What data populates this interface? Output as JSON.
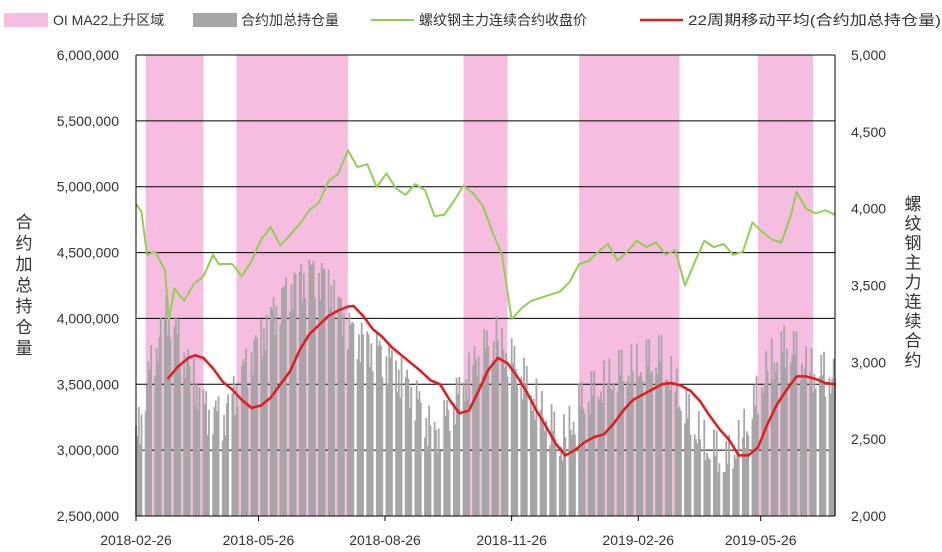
{
  "chart_data": {
    "type": "bar",
    "x_axis": {
      "range": [
        "2018-02-26",
        "2019-07-19"
      ],
      "tick_labels": [
        "2018-02-26",
        "2018-05-26",
        "2018-08-26",
        "2018-11-26",
        "2019-02-26",
        "2019-05-26"
      ]
    },
    "y_left": {
      "label": "合约加总持仓量",
      "range": [
        2500000,
        6000000
      ],
      "ticks": [
        2500000,
        3000000,
        3500000,
        4000000,
        4500000,
        5000000,
        5500000,
        6000000
      ],
      "tick_labels": [
        "2,500,000",
        "3,000,000",
        "3,500,000",
        "4,000,000",
        "4,500,000",
        "5,000,000",
        "5,500,000",
        "6,000,000"
      ]
    },
    "y_right": {
      "label": "螺纹钢主力连续合约",
      "range": [
        2000,
        5000
      ],
      "ticks": [
        2000,
        2500,
        3000,
        3500,
        4000,
        4500,
        5000
      ],
      "tick_labels": [
        "2,000",
        "2,500",
        "3,000",
        "3,500",
        "4,000",
        "4,500",
        "5,000"
      ]
    },
    "grid": "horizontal",
    "legend_position": "top",
    "colors": {
      "band": "#f7bde0",
      "bars": "#a6a6a6",
      "price": "#8fd14f",
      "ma": "#e41a1c"
    },
    "series": [
      {
        "name": "OI MA22上升区域",
        "kind": "band",
        "ranges": [
          [
            "2018-03-05",
            "2018-04-16"
          ],
          [
            "2018-05-10",
            "2018-07-30"
          ],
          [
            "2018-10-22",
            "2018-11-23"
          ],
          [
            "2019-01-14",
            "2019-03-28"
          ],
          [
            "2019-05-24",
            "2019-07-03"
          ]
        ]
      },
      {
        "name": "合约加总持仓量",
        "kind": "bar",
        "axis": "left",
        "points": [
          [
            "2018-02-26",
            3050000
          ],
          [
            "2018-03-08",
            3600000
          ],
          [
            "2018-03-21",
            4050000
          ],
          [
            "2018-04-05",
            3650000
          ],
          [
            "2018-04-18",
            3300000
          ],
          [
            "2018-05-01",
            3250000
          ],
          [
            "2018-05-15",
            3600000
          ],
          [
            "2018-06-01",
            3950000
          ],
          [
            "2018-06-15",
            4200000
          ],
          [
            "2018-07-01",
            4350000
          ],
          [
            "2018-07-15",
            4300000
          ],
          [
            "2018-08-01",
            3900000
          ],
          [
            "2018-08-15",
            3800000
          ],
          [
            "2018-09-01",
            3650000
          ],
          [
            "2018-09-15",
            3450000
          ],
          [
            "2018-10-01",
            3100000
          ],
          [
            "2018-10-15",
            3350000
          ],
          [
            "2018-11-01",
            3700000
          ],
          [
            "2018-11-15",
            3850000
          ],
          [
            "2018-12-01",
            3600000
          ],
          [
            "2018-12-15",
            3350000
          ],
          [
            "2019-01-01",
            3050000
          ],
          [
            "2019-01-15",
            3350000
          ],
          [
            "2019-02-01",
            3500000
          ],
          [
            "2019-02-15",
            3600000
          ],
          [
            "2019-03-01",
            3650000
          ],
          [
            "2019-03-15",
            3700000
          ],
          [
            "2019-04-01",
            3300000
          ],
          [
            "2019-04-15",
            3050000
          ],
          [
            "2019-05-01",
            2900000
          ],
          [
            "2019-05-15",
            3150000
          ],
          [
            "2019-06-01",
            3650000
          ],
          [
            "2019-06-15",
            3800000
          ],
          [
            "2019-07-01",
            3600000
          ],
          [
            "2019-07-19",
            3550000
          ]
        ]
      },
      {
        "name": "螺纹钢主力连续合约收盘价",
        "kind": "line",
        "axis": "right",
        "points": [
          [
            "2018-02-26",
            4030
          ],
          [
            "2018-03-02",
            3980
          ],
          [
            "2018-03-06",
            3700
          ],
          [
            "2018-03-12",
            3720
          ],
          [
            "2018-03-19",
            3600
          ],
          [
            "2018-03-22",
            3280
          ],
          [
            "2018-03-26",
            3480
          ],
          [
            "2018-04-02",
            3400
          ],
          [
            "2018-04-09",
            3510
          ],
          [
            "2018-04-16",
            3560
          ],
          [
            "2018-04-23",
            3700
          ],
          [
            "2018-04-27",
            3640
          ],
          [
            "2018-05-07",
            3640
          ],
          [
            "2018-05-14",
            3560
          ],
          [
            "2018-05-21",
            3660
          ],
          [
            "2018-05-28",
            3800
          ],
          [
            "2018-06-04",
            3880
          ],
          [
            "2018-06-11",
            3760
          ],
          [
            "2018-06-18",
            3830
          ],
          [
            "2018-06-25",
            3900
          ],
          [
            "2018-07-02",
            3990
          ],
          [
            "2018-07-09",
            4040
          ],
          [
            "2018-07-16",
            4180
          ],
          [
            "2018-07-23",
            4230
          ],
          [
            "2018-07-30",
            4380
          ],
          [
            "2018-08-06",
            4270
          ],
          [
            "2018-08-13",
            4290
          ],
          [
            "2018-08-20",
            4140
          ],
          [
            "2018-08-27",
            4230
          ],
          [
            "2018-09-03",
            4130
          ],
          [
            "2018-09-10",
            4090
          ],
          [
            "2018-09-17",
            4160
          ],
          [
            "2018-09-24",
            4120
          ],
          [
            "2018-10-01",
            3950
          ],
          [
            "2018-10-08",
            3960
          ],
          [
            "2018-10-15",
            4050
          ],
          [
            "2018-10-22",
            4150
          ],
          [
            "2018-10-29",
            4100
          ],
          [
            "2018-11-05",
            4020
          ],
          [
            "2018-11-12",
            3850
          ],
          [
            "2018-11-19",
            3700
          ],
          [
            "2018-11-26",
            3280
          ],
          [
            "2018-12-03",
            3350
          ],
          [
            "2018-12-10",
            3400
          ],
          [
            "2018-12-17",
            3420
          ],
          [
            "2018-12-24",
            3440
          ],
          [
            "2018-12-31",
            3460
          ],
          [
            "2019-01-07",
            3520
          ],
          [
            "2019-01-14",
            3640
          ],
          [
            "2019-01-21",
            3660
          ],
          [
            "2019-01-28",
            3720
          ],
          [
            "2019-02-04",
            3770
          ],
          [
            "2019-02-11",
            3660
          ],
          [
            "2019-02-18",
            3720
          ],
          [
            "2019-02-25",
            3790
          ],
          [
            "2019-03-04",
            3750
          ],
          [
            "2019-03-11",
            3780
          ],
          [
            "2019-03-18",
            3700
          ],
          [
            "2019-03-25",
            3730
          ],
          [
            "2019-04-01",
            3500
          ],
          [
            "2019-04-08",
            3650
          ],
          [
            "2019-04-15",
            3790
          ],
          [
            "2019-04-22",
            3750
          ],
          [
            "2019-04-29",
            3770
          ],
          [
            "2019-05-06",
            3700
          ],
          [
            "2019-05-13",
            3720
          ],
          [
            "2019-05-20",
            3910
          ],
          [
            "2019-05-27",
            3850
          ],
          [
            "2019-06-03",
            3800
          ],
          [
            "2019-06-10",
            3780
          ],
          [
            "2019-06-17",
            3960
          ],
          [
            "2019-06-21",
            4110
          ],
          [
            "2019-06-28",
            4000
          ],
          [
            "2019-07-05",
            3970
          ],
          [
            "2019-07-12",
            3990
          ],
          [
            "2019-07-19",
            3960
          ]
        ]
      },
      {
        "name": "22周期移动平均(合约加总持仓量)",
        "kind": "line",
        "axis": "left",
        "points": [
          [
            "2018-03-21",
            3540000
          ],
          [
            "2018-03-28",
            3630000
          ],
          [
            "2018-04-05",
            3700000
          ],
          [
            "2018-04-10",
            3720000
          ],
          [
            "2018-04-16",
            3700000
          ],
          [
            "2018-04-23",
            3620000
          ],
          [
            "2018-04-30",
            3520000
          ],
          [
            "2018-05-07",
            3460000
          ],
          [
            "2018-05-14",
            3380000
          ],
          [
            "2018-05-21",
            3320000
          ],
          [
            "2018-05-28",
            3340000
          ],
          [
            "2018-06-04",
            3400000
          ],
          [
            "2018-06-11",
            3500000
          ],
          [
            "2018-06-18",
            3600000
          ],
          [
            "2018-06-25",
            3760000
          ],
          [
            "2018-07-02",
            3880000
          ],
          [
            "2018-07-09",
            3950000
          ],
          [
            "2018-07-16",
            4020000
          ],
          [
            "2018-07-23",
            4060000
          ],
          [
            "2018-07-30",
            4090000
          ],
          [
            "2018-08-03",
            4095000
          ],
          [
            "2018-08-10",
            4020000
          ],
          [
            "2018-08-17",
            3920000
          ],
          [
            "2018-08-24",
            3860000
          ],
          [
            "2018-08-31",
            3780000
          ],
          [
            "2018-09-07",
            3720000
          ],
          [
            "2018-09-14",
            3660000
          ],
          [
            "2018-09-21",
            3600000
          ],
          [
            "2018-09-28",
            3530000
          ],
          [
            "2018-10-05",
            3500000
          ],
          [
            "2018-10-12",
            3380000
          ],
          [
            "2018-10-19",
            3280000
          ],
          [
            "2018-10-26",
            3300000
          ],
          [
            "2018-11-02",
            3450000
          ],
          [
            "2018-11-09",
            3610000
          ],
          [
            "2018-11-16",
            3700000
          ],
          [
            "2018-11-23",
            3660000
          ],
          [
            "2018-11-30",
            3560000
          ],
          [
            "2018-12-07",
            3440000
          ],
          [
            "2018-12-14",
            3300000
          ],
          [
            "2018-12-21",
            3180000
          ],
          [
            "2018-12-28",
            3050000
          ],
          [
            "2019-01-04",
            2960000
          ],
          [
            "2019-01-11",
            3000000
          ],
          [
            "2019-01-18",
            3060000
          ],
          [
            "2019-01-25",
            3100000
          ],
          [
            "2019-02-01",
            3120000
          ],
          [
            "2019-02-08",
            3200000
          ],
          [
            "2019-02-15",
            3300000
          ],
          [
            "2019-02-22",
            3380000
          ],
          [
            "2019-03-01",
            3420000
          ],
          [
            "2019-03-08",
            3460000
          ],
          [
            "2019-03-15",
            3500000
          ],
          [
            "2019-03-22",
            3510000
          ],
          [
            "2019-03-29",
            3490000
          ],
          [
            "2019-04-05",
            3450000
          ],
          [
            "2019-04-12",
            3370000
          ],
          [
            "2019-04-19",
            3260000
          ],
          [
            "2019-04-26",
            3160000
          ],
          [
            "2019-05-03",
            3080000
          ],
          [
            "2019-05-10",
            2960000
          ],
          [
            "2019-05-17",
            2960000
          ],
          [
            "2019-05-24",
            3020000
          ],
          [
            "2019-05-31",
            3200000
          ],
          [
            "2019-06-07",
            3350000
          ],
          [
            "2019-06-14",
            3460000
          ],
          [
            "2019-06-21",
            3560000
          ],
          [
            "2019-06-28",
            3560000
          ],
          [
            "2019-07-05",
            3540000
          ],
          [
            "2019-07-12",
            3510000
          ],
          [
            "2019-07-19",
            3500000
          ]
        ]
      }
    ]
  }
}
